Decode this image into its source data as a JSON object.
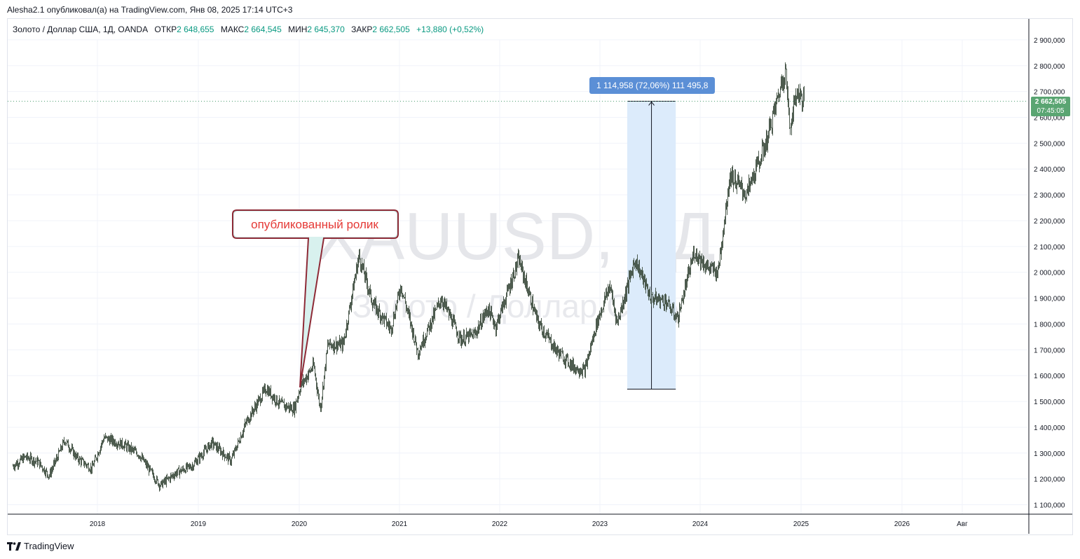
{
  "header": {
    "caption": "Alesha2.1 опубликовал(а) на TradingView.com, Янв 08, 2025 17:14 UTC+3"
  },
  "symbol_info": {
    "name": "Золото / Доллар США, 1Д, OANDA",
    "open_label": "ОТКР",
    "open_value": "2 648,655",
    "high_label": "МАКС",
    "high_value": "2 664,545",
    "low_label": "МИН",
    "low_value": "2 645,370",
    "close_label": "ЗАКР",
    "close_value": "2 662,505",
    "change": "+13,880 (+0,52%)"
  },
  "watermark": {
    "ticker": "XAUUSD, 1Д",
    "description": "Золото / Доллар США"
  },
  "annotation": {
    "text": "опубликованный ролик"
  },
  "price_tag": {
    "price": "2 662,505",
    "countdown": "07:45:05"
  },
  "range_measure": {
    "label": "1 114,958 (72,06%) 111 495,8",
    "from_price": 1547.5,
    "to_price": 2662.5
  },
  "footer": {
    "brand": "TradingView"
  },
  "colors": {
    "up": "#089981",
    "down": "#f23645",
    "candle": "#3a4a3c",
    "accent": "#2962ff",
    "measure_fill": "#dcebfb",
    "price_tag": "#5aa572",
    "annotation_border": "#8e2a36",
    "annotation_fill": "#d8f1ee",
    "annotation_text": "#e53935"
  },
  "chart_data": {
    "type": "line",
    "title": "Золото / Доллар США, 1Д, OANDA",
    "xlabel": "",
    "ylabel": "",
    "y_ticks": [
      "1 100,000",
      "1 200,000",
      "1 300,000",
      "1 400,000",
      "1 500,000",
      "1 600,000",
      "1 700,000",
      "1 800,000",
      "1 900,000",
      "2 000,000",
      "2 100,000",
      "2 200,000",
      "2 300,000",
      "2 400,000",
      "2 500,000",
      "2 600,000",
      "2 700,000",
      "2 800,000",
      "2 900,000"
    ],
    "x_ticks": [
      "2018",
      "2019",
      "2020",
      "2021",
      "2022",
      "2023",
      "2024",
      "2025",
      "2026",
      "Авг"
    ],
    "ylim": [
      1040,
      3000
    ],
    "xlim": [
      "2017-03-01",
      "2026-11-01"
    ],
    "grid": true,
    "series": [
      {
        "x": [
          "2017-03-01",
          "2017-04-15",
          "2017-06-01",
          "2017-07-10",
          "2017-09-05",
          "2017-10-20",
          "2017-12-12",
          "2018-01-25",
          "2018-04-10",
          "2018-06-01",
          "2018-08-16",
          "2018-10-15",
          "2018-12-10",
          "2019-02-20",
          "2019-04-30",
          "2019-06-25",
          "2019-09-04",
          "2019-10-25",
          "2019-12-15",
          "2020-01-08",
          "2020-02-24",
          "2020-03-19",
          "2020-04-15",
          "2020-06-10",
          "2020-08-06",
          "2020-09-25",
          "2020-11-30",
          "2021-01-05",
          "2021-03-08",
          "2021-06-01",
          "2021-08-10",
          "2021-09-30",
          "2021-11-16",
          "2021-12-15",
          "2022-03-08",
          "2022-05-15",
          "2022-07-20",
          "2022-09-28",
          "2022-11-03",
          "2022-12-15",
          "2023-02-01",
          "2023-02-28",
          "2023-05-04",
          "2023-06-30",
          "2023-08-21",
          "2023-10-05",
          "2023-12-04",
          "2024-01-20",
          "2024-02-28",
          "2024-04-12",
          "2024-06-10",
          "2024-08-20",
          "2024-10-30",
          "2024-11-14",
          "2024-12-10",
          "2025-01-08"
        ],
        "y": [
          1250,
          1285,
          1265,
          1212,
          1350,
          1280,
          1240,
          1360,
          1330,
          1295,
          1175,
          1225,
          1250,
          1340,
          1270,
          1420,
          1550,
          1490,
          1470,
          1560,
          1640,
          1470,
          1720,
          1720,
          2065,
          1880,
          1780,
          1950,
          1690,
          1900,
          1740,
          1760,
          1860,
          1790,
          2050,
          1810,
          1700,
          1630,
          1620,
          1800,
          1950,
          1805,
          2050,
          1900,
          1890,
          1820,
          2080,
          2020,
          2000,
          2380,
          2300,
          2500,
          2790,
          2560,
          2700,
          2662
        ]
      }
    ]
  }
}
